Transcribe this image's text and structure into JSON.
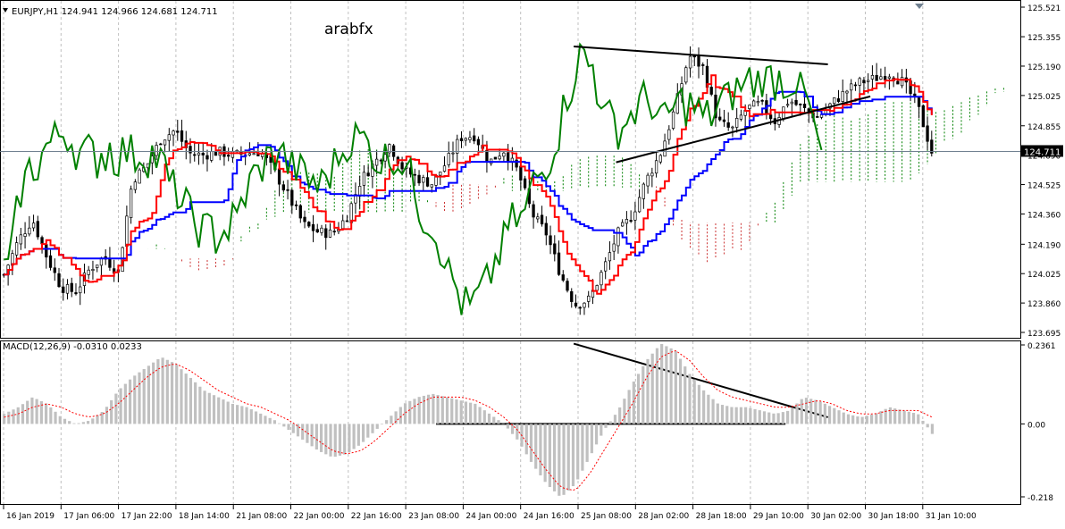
{
  "window": {
    "header": "EURJPY,H1  124.941 124.966 124.681 124.711",
    "watermark": "arabfx",
    "current_price_label": "124.711",
    "macd_header": "MACD(12,26,9) -0.0310 0.0233"
  },
  "colors": {
    "bull_candle": "#000000",
    "bear_candle": "#000000",
    "tenkan": "#ff0000",
    "kijun": "#0000ff",
    "chikou": "#008000",
    "kumo_up": "#008000",
    "kumo_down": "#cc3333",
    "macd_hist": "#c0c0c0",
    "macd_signal": "#ff0000",
    "trendline": "#000000",
    "grid": "#c0c0c0"
  },
  "chart_data": [
    {
      "type": "candlestick",
      "title": "EURJPY,H1",
      "ohlc_last": {
        "open": 124.941,
        "high": 124.966,
        "low": 124.681,
        "close": 124.711
      },
      "ylim": [
        123.695,
        125.521
      ],
      "y_ticks": [
        "125.521",
        "125.355",
        "125.190",
        "125.025",
        "124.855",
        "124.690",
        "124.525",
        "124.360",
        "124.190",
        "124.025",
        "123.860",
        "123.695"
      ],
      "x_ticks": [
        "16 Jan 2019",
        "17 Jan 06:00",
        "17 Jan 22:00",
        "18 Jan 14:00",
        "21 Jan 08:00",
        "22 Jan 00:00",
        "22 Jan 16:00",
        "23 Jan 08:00",
        "24 Jan 00:00",
        "24 Jan 16:00",
        "25 Jan 08:00",
        "28 Jan 02:00",
        "28 Jan 18:00",
        "29 Jan 10:00",
        "30 Jan 02:00",
        "30 Jan 18:00",
        "31 Jan 10:00"
      ],
      "current_price": 124.711,
      "indicators": [
        "Ichimoku Tenkan",
        "Ichimoku Kijun",
        "Chikou",
        "Kumo"
      ],
      "close_path": [
        124.02,
        124.21,
        124.33,
        124.12,
        123.95,
        123.92,
        124.05,
        124.12,
        124.03,
        124.55,
        124.63,
        124.78,
        124.83,
        124.7,
        124.69,
        124.71,
        124.69,
        124.7,
        124.71,
        124.59,
        124.45,
        124.3,
        124.26,
        124.25,
        124.34,
        124.55,
        124.65,
        124.75,
        124.61,
        124.56,
        124.53,
        124.65,
        124.79,
        124.8,
        124.65,
        124.72,
        124.6,
        124.36,
        124.25,
        124.02,
        123.85,
        123.88,
        124.05,
        124.25,
        124.35,
        124.55,
        124.7,
        124.95,
        125.25,
        125.18,
        124.88,
        124.83,
        124.95,
        124.98,
        124.88,
        125.0,
        124.95,
        124.9,
        124.98,
        125.05,
        125.1,
        125.12,
        125.15,
        125.1,
        124.97,
        124.71
      ],
      "trendlines_price": [
        {
          "from": [
            0.5625,
            125.3
          ],
          "to": [
            0.8125,
            125.2
          ]
        },
        {
          "from": [
            0.6042,
            124.65
          ],
          "to": [
            0.8542,
            125.02
          ]
        }
      ]
    },
    {
      "type": "bar+line",
      "title": "MACD(12,26,9)",
      "values_header": {
        "macd": -0.031,
        "signal": 0.0233
      },
      "ylim": [
        -0.218,
        0.2361
      ],
      "y_ticks": [
        "0.2361",
        "0.00",
        "-0.218"
      ],
      "histogram": [
        0.03,
        0.05,
        0.08,
        0.06,
        0.02,
        0.0,
        0.01,
        0.04,
        0.1,
        0.14,
        0.17,
        0.2,
        0.18,
        0.14,
        0.1,
        0.08,
        0.06,
        0.05,
        0.03,
        0.01,
        -0.02,
        -0.05,
        -0.08,
        -0.1,
        -0.09,
        -0.06,
        -0.02,
        0.02,
        0.06,
        0.08,
        0.09,
        0.08,
        0.07,
        0.06,
        0.03,
        0.0,
        -0.05,
        -0.12,
        -0.18,
        -0.22,
        -0.18,
        -0.1,
        -0.02,
        0.04,
        0.12,
        0.19,
        0.24,
        0.22,
        0.15,
        0.1,
        0.06,
        0.05,
        0.05,
        0.04,
        0.03,
        0.04,
        0.08,
        0.07,
        0.05,
        0.03,
        0.02,
        0.03,
        0.05,
        0.04,
        0.03,
        -0.03
      ],
      "signal": [
        0.02,
        0.03,
        0.05,
        0.06,
        0.05,
        0.03,
        0.02,
        0.03,
        0.06,
        0.1,
        0.14,
        0.17,
        0.18,
        0.16,
        0.13,
        0.1,
        0.08,
        0.06,
        0.05,
        0.03,
        0.01,
        -0.02,
        -0.05,
        -0.08,
        -0.09,
        -0.08,
        -0.05,
        -0.01,
        0.03,
        0.06,
        0.08,
        0.08,
        0.08,
        0.07,
        0.05,
        0.02,
        -0.02,
        -0.08,
        -0.14,
        -0.19,
        -0.2,
        -0.15,
        -0.08,
        -0.01,
        0.06,
        0.14,
        0.2,
        0.22,
        0.19,
        0.14,
        0.1,
        0.08,
        0.07,
        0.06,
        0.05,
        0.05,
        0.06,
        0.07,
        0.06,
        0.04,
        0.03,
        0.03,
        0.04,
        0.04,
        0.04,
        0.02
      ],
      "trendlines_value": [
        {
          "from": [
            0.5625,
            0.24
          ],
          "to": [
            0.8125,
            0.02
          ]
        },
        {
          "from": [
            0.4271,
            0.0
          ],
          "to": [
            0.7708,
            0.0
          ]
        }
      ]
    }
  ]
}
